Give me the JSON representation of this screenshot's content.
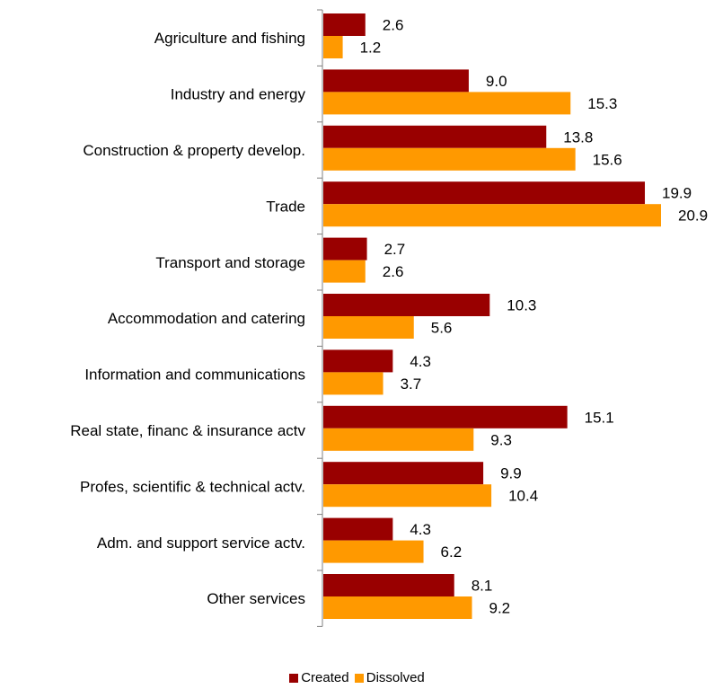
{
  "chart_data": {
    "type": "bar",
    "orientation": "horizontal",
    "categories": [
      "Agriculture and fishing",
      "Industry and energy",
      "Construction & property develop.",
      "Trade",
      "Transport and storage",
      "Accommodation and catering",
      "Information and communications",
      "Real state, financ & insurance actv",
      "Profes, scientific & technical actv.",
      "Adm. and support service actv.",
      "Other services"
    ],
    "series": [
      {
        "name": "Created",
        "color": "#990000",
        "values": [
          2.6,
          9.0,
          13.8,
          19.9,
          2.7,
          10.3,
          4.3,
          15.1,
          9.9,
          4.3,
          8.1
        ],
        "labels": [
          "2.6",
          "9.0",
          "13.8",
          "19.9",
          "2.7",
          "10.3",
          "4.3",
          "15.1",
          "9.9",
          "4.3",
          "8.1"
        ]
      },
      {
        "name": "Dissolved",
        "color": "#FF9900",
        "values": [
          1.2,
          15.3,
          15.6,
          20.9,
          2.6,
          5.6,
          3.7,
          9.3,
          10.4,
          6.2,
          9.2
        ],
        "labels": [
          "1.2",
          "15.3",
          "15.6",
          "20.9",
          "2.6",
          "5.6",
          "3.7",
          "9.3",
          "10.4",
          "6.2",
          "9.2"
        ]
      }
    ],
    "xlim": [
      0,
      24
    ],
    "grid": false,
    "legend_position": "bottom-center",
    "title": "",
    "xlabel": "",
    "ylabel": ""
  }
}
